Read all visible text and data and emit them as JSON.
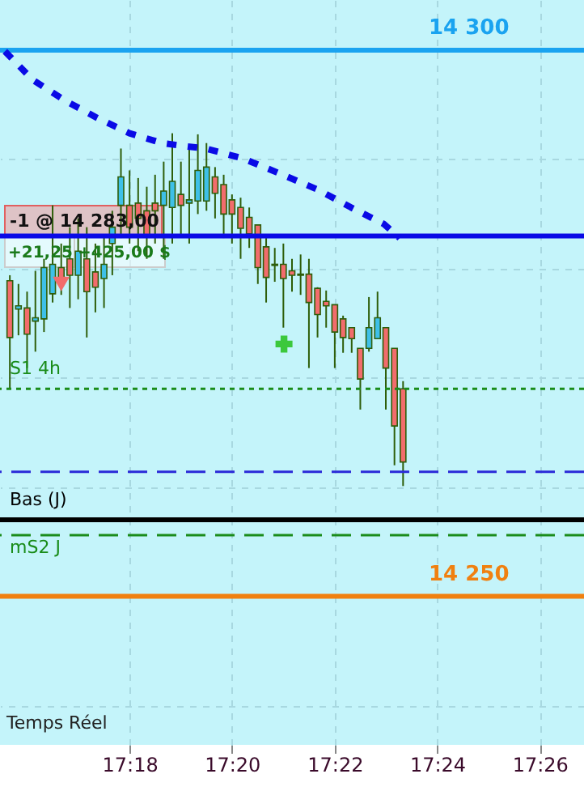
{
  "chart_data": {
    "type": "candlestick",
    "x": [
      17.2611,
      17.2639,
      17.2667,
      17.2694,
      17.2722,
      17.275,
      17.2778,
      17.2806,
      17.2833,
      17.2861,
      17.2889,
      17.2917,
      17.2944,
      17.2972,
      17.3,
      17.3028,
      17.3056,
      17.3083,
      17.3111,
      17.3139,
      17.3167,
      17.3194,
      17.3222,
      17.325,
      17.3278,
      17.3306,
      17.3333,
      17.3361,
      17.3389,
      17.3417,
      17.3444,
      17.3472,
      17.35,
      17.3528,
      17.3556,
      17.3583,
      17.3611,
      17.3639,
      17.3667,
      17.3694,
      17.3722,
      17.375,
      17.3778,
      17.3806,
      17.3833,
      17.3861,
      17.3889
    ],
    "ohlc": [
      [
        14278.9,
        14279.4,
        14269.0,
        14273.7
      ],
      [
        14276.3,
        14278.6,
        14273.9,
        14276.6
      ],
      [
        14276.4,
        14277.9,
        14270.9,
        14274.0
      ],
      [
        14275.2,
        14279.8,
        14272.4,
        14275.5
      ],
      [
        14275.4,
        14280.9,
        14274.2,
        14280.1
      ],
      [
        14277.7,
        14285.8,
        14276.9,
        14280.4
      ],
      [
        14280.1,
        14282.3,
        14277.6,
        14278.6
      ],
      [
        14280.9,
        14283.8,
        14276.4,
        14279.4
      ],
      [
        14279.4,
        14284.6,
        14277.2,
        14281.6
      ],
      [
        14280.9,
        14283.8,
        14273.7,
        14277.9
      ],
      [
        14279.7,
        14282.3,
        14276.0,
        14278.3
      ],
      [
        14279.1,
        14283.1,
        14276.4,
        14280.4
      ],
      [
        14282.3,
        14285.3,
        14279.4,
        14283.8
      ],
      [
        14285.8,
        14291.0,
        14282.8,
        14288.4
      ],
      [
        14285.8,
        14289.0,
        14282.3,
        14283.8
      ],
      [
        14286.0,
        14288.3,
        14281.6,
        14284.6
      ],
      [
        14285.3,
        14287.5,
        14280.9,
        14283.1
      ],
      [
        14286.0,
        14288.6,
        14282.3,
        14285.3
      ],
      [
        14285.8,
        14289.8,
        14280.9,
        14287.1
      ],
      [
        14285.6,
        14292.4,
        14282.3,
        14288.0
      ],
      [
        14286.8,
        14289.8,
        14283.1,
        14285.8
      ],
      [
        14286.0,
        14291.0,
        14282.3,
        14286.3
      ],
      [
        14286.2,
        14292.3,
        14285.0,
        14289.0
      ],
      [
        14286.2,
        14291.5,
        14285.3,
        14289.3
      ],
      [
        14288.4,
        14289.3,
        14284.6,
        14286.9
      ],
      [
        14287.7,
        14288.6,
        14282.8,
        14285.0
      ],
      [
        14286.3,
        14286.8,
        14282.3,
        14285.0
      ],
      [
        14285.6,
        14286.5,
        14280.9,
        14283.7
      ],
      [
        14284.7,
        14285.6,
        14281.9,
        14283.2
      ],
      [
        14284.0,
        14284.0,
        14278.6,
        14280.1
      ],
      [
        14282.0,
        14282.8,
        14276.9,
        14279.2
      ],
      [
        14280.4,
        14281.9,
        14278.8,
        14280.3
      ],
      [
        14280.4,
        14282.3,
        14274.6,
        14279.1
      ],
      [
        14279.8,
        14280.9,
        14277.9,
        14279.4
      ],
      [
        14279.5,
        14281.3,
        14277.6,
        14279.4
      ],
      [
        14279.5,
        14280.9,
        14270.9,
        14276.9
      ],
      [
        14278.2,
        14278.3,
        14273.7,
        14275.8
      ],
      [
        14277.0,
        14278.0,
        14274.6,
        14276.6
      ],
      [
        14276.7,
        14276.7,
        14270.9,
        14274.2
      ],
      [
        14275.4,
        14275.7,
        14272.3,
        14273.7
      ],
      [
        14274.6,
        14274.6,
        14272.3,
        14273.6
      ],
      [
        14272.7,
        14272.7,
        14267.1,
        14269.9
      ],
      [
        14272.7,
        14277.4,
        14272.4,
        14274.6
      ],
      [
        14273.6,
        14277.9,
        14273.6,
        14275.5
      ],
      [
        14274.6,
        14274.6,
        14267.1,
        14270.9
      ],
      [
        14272.7,
        14272.7,
        14262.0,
        14265.6
      ],
      [
        14269.0,
        14269.7,
        14260.1,
        14262.3
      ]
    ],
    "colors": [
      "#f26c6c",
      "#3ec0e8",
      "#f26c6c",
      "#3ec0e8",
      "#3ec0e8",
      "#3ec0e8",
      "#f26c6c",
      "#f26c6c",
      "#3ec0e8",
      "#f26c6c",
      "#f26c6c",
      "#3ec0e8",
      "#3ec0e8",
      "#3ec0e8",
      "#f26c6c",
      "#f26c6c",
      "#f26c6c",
      "#f26c6c",
      "#3ec0e8",
      "#3ec0e8",
      "#f26c6c",
      "#3ec0e8",
      "#3ec0e8",
      "#3ec0e8",
      "#f26c6c",
      "#f26c6c",
      "#f26c6c",
      "#f26c6c",
      "#f26c6c",
      "#f26c6c",
      "#f26c6c",
      "#f26c6c",
      "#f26c6c",
      "#f26c6c",
      "#f26c6c",
      "#f26c6c",
      "#f26c6c",
      "#f26c6c",
      "#f26c6c",
      "#f26c6c",
      "#f26c6c",
      "#f26c6c",
      "#3ec0e8",
      "#3ec0e8",
      "#f26c6c",
      "#f26c6c",
      "#f26c6c"
    ],
    "series": [
      {
        "type": "line",
        "color": "#0a0ae6",
        "line_style": "dotted",
        "marker": "none",
        "x": [
          17.2595,
          17.2685,
          17.279,
          17.2895,
          17.3,
          17.3105,
          17.3184,
          17.3247,
          17.3368,
          17.3489,
          17.3615,
          17.372,
          17.3826,
          17.3878
        ],
        "values": [
          14299.9,
          14297.3,
          14295.4,
          14293.8,
          14292.4,
          14291.5,
          14291.2,
          14291.0,
          14290.1,
          14288.7,
          14287.2,
          14285.6,
          14284.1,
          14282.8
        ]
      },
      {
        "type": "scatter",
        "color": "#3cc83c",
        "marker": "cross",
        "x": [
          17.3502
        ],
        "values": [
          14273.1
        ]
      },
      {
        "type": "scatter",
        "color": "#f26c6c",
        "marker": "triangle",
        "x": [
          17.2778
        ],
        "values": [
          14278.6
        ]
      }
    ],
    "ref_lines": [
      {
        "axis": "y",
        "value": 14300,
        "label": "14 300",
        "color": "#1aa3f0",
        "line_style": "solid"
      },
      {
        "axis": "y",
        "value": 14283,
        "label": null,
        "color": "#0a0ae6",
        "line_style": "solid"
      },
      {
        "axis": "y",
        "value": 14269.0,
        "label": "S1 4h",
        "color": "#1a8c1a",
        "line_style": "dotted"
      },
      {
        "axis": "y",
        "value": 14261.4,
        "label": null,
        "color": "#2a2ad8",
        "line_style": "dashed"
      },
      {
        "axis": "y",
        "value": 14257.0,
        "label": "Bas (J)",
        "color": "#000000",
        "line_style": "solid"
      },
      {
        "axis": "y",
        "value": 14255.6,
        "label": "mS2 J",
        "color": "#1a8c1a",
        "line_style": "dashed"
      },
      {
        "axis": "y",
        "value": 14250,
        "label": "14 250",
        "color": "#f08010",
        "line_style": "solid"
      }
    ],
    "annotations": [
      "-1 @ 14 283,00",
      "+21,25",
      "+425,00 $",
      "Temps Réel"
    ],
    "xlim": [
      17.2579,
      17.4477
    ],
    "ylim": [
      14236.4,
      14304.6
    ],
    "xticks": [
      {
        "value": 17.3,
        "label": "17:18"
      },
      {
        "value": 17.3333,
        "label": "17:20"
      },
      {
        "value": 17.3667,
        "label": "17:22"
      },
      {
        "value": 17.4,
        "label": "17:24"
      },
      {
        "value": 17.4333,
        "label": "17:26"
      }
    ],
    "yticks": [
      {
        "value": 14240,
        "label": null
      },
      {
        "value": 14250,
        "label": null
      },
      {
        "value": 14260,
        "label": null
      },
      {
        "value": 14270,
        "label": null
      },
      {
        "value": 14280,
        "label": null
      },
      {
        "value": 14290,
        "label": null
      },
      {
        "value": 14300,
        "label": null
      }
    ],
    "grid": true,
    "tick_labels": "x"
  }
}
